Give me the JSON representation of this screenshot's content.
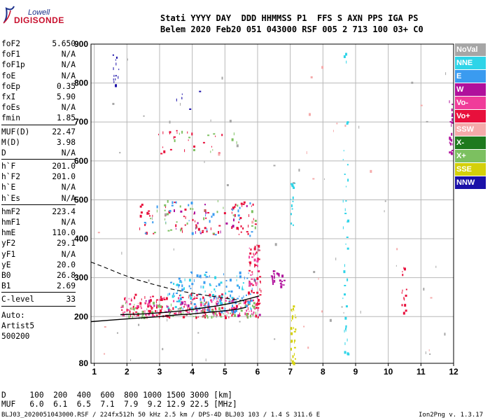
{
  "logo": {
    "line1": "Lowell",
    "line2": "DIGISONDE"
  },
  "header": {
    "row1": "Stati YYYY DAY  DDD HHMMSS P1  FFS S AXN PPS IGA PS",
    "row2": "Belem 2020 Feb20 051 043000 RSF 005 2 713 100 03+ C0"
  },
  "params": [
    {
      "k": "foF2",
      "v": "5.650",
      "sep": false
    },
    {
      "k": "foF1",
      "v": "N/A",
      "sep": false
    },
    {
      "k": "foF1p",
      "v": "N/A",
      "sep": false
    },
    {
      "k": "foE",
      "v": "N/A",
      "sep": false
    },
    {
      "k": "foEp",
      "v": "0.35",
      "sep": false
    },
    {
      "k": "fxI",
      "v": "5.90",
      "sep": false
    },
    {
      "k": "foEs",
      "v": "N/A",
      "sep": false
    },
    {
      "k": "fmin",
      "v": "1.85",
      "sep": true
    },
    {
      "k": "MUF(D)",
      "v": "22.47",
      "sep": false
    },
    {
      "k": "M(D)",
      "v": "3.98",
      "sep": false
    },
    {
      "k": "D",
      "v": "N/A",
      "sep": true
    },
    {
      "k": "h`F",
      "v": "201.0",
      "sep": false
    },
    {
      "k": "h`F2",
      "v": "201.0",
      "sep": false
    },
    {
      "k": "h`E",
      "v": "N/A",
      "sep": false
    },
    {
      "k": "h`Es",
      "v": "N/A",
      "sep": true
    },
    {
      "k": "hmF2",
      "v": "223.4",
      "sep": false
    },
    {
      "k": "hmF1",
      "v": "N/A",
      "sep": false
    },
    {
      "k": "hmE",
      "v": "110.0",
      "sep": false
    },
    {
      "k": "yF2",
      "v": "29.1",
      "sep": false
    },
    {
      "k": "yF1",
      "v": "N/A",
      "sep": false
    },
    {
      "k": "yE",
      "v": "20.0",
      "sep": false
    },
    {
      "k": "B0",
      "v": "26.8",
      "sep": false
    },
    {
      "k": "B1",
      "v": "2.69",
      "sep": true
    },
    {
      "k": "C-level",
      "v": "33",
      "sep": true
    }
  ],
  "auto": [
    "Auto:",
    "Artist5",
    "500200"
  ],
  "legend": [
    {
      "label": "NoVal",
      "color": "#a6a6a6"
    },
    {
      "label": "NNE",
      "color": "#2ed4e8"
    },
    {
      "label": "E",
      "color": "#3a9bf0"
    },
    {
      "label": "W",
      "color": "#b0109c"
    },
    {
      "label": "Vo-",
      "color": "#f03c9a"
    },
    {
      "label": "Vo+",
      "color": "#e8103c"
    },
    {
      "label": "SSW",
      "color": "#f5aaaa"
    },
    {
      "label": "X-",
      "color": "#1e7a1e"
    },
    {
      "label": "X+",
      "color": "#7cc060"
    },
    {
      "label": "SSE",
      "color": "#d4d00a"
    },
    {
      "label": "NNW",
      "color": "#1a10a8"
    }
  ],
  "mufTable": {
    "row1": "D     100  200  400  600  800 1000 1500 3000 [km]",
    "row2": "MUF   6.0  6.1  6.5  7.1  7.9  9.2 12.9 22.5 [MHz]"
  },
  "footer": {
    "left": "BLJ03_2020051043000.RSF / 224fx512h 50 kHz 2.5 km / DPS-4D BLJ03 103 / 1.4 S 311.6 E",
    "right": "Ion2Png v. 1.3.17"
  },
  "chart_data": {
    "type": "scatter",
    "xlim": [
      0.9,
      12
    ],
    "ylim": [
      80,
      900
    ],
    "xticks": [
      1,
      2,
      3,
      4,
      5,
      6,
      7,
      8,
      9,
      10,
      11,
      12
    ],
    "yticks": [
      80,
      200,
      300,
      400,
      500,
      600,
      700,
      800,
      900
    ],
    "grid": true,
    "legend_position": "right",
    "profile_solid": [
      [
        0.9,
        187
      ],
      [
        1.5,
        191
      ],
      [
        2.0,
        194
      ],
      [
        2.5,
        197
      ],
      [
        3.0,
        200
      ],
      [
        3.5,
        204
      ],
      [
        4.0,
        207
      ],
      [
        4.5,
        211
      ],
      [
        5.0,
        215
      ],
      [
        5.4,
        219
      ],
      [
        5.65,
        224
      ]
    ],
    "profile_dashed": [
      [
        0.9,
        340
      ],
      [
        1.3,
        327
      ],
      [
        1.8,
        310
      ],
      [
        2.3,
        295
      ],
      [
        2.8,
        283
      ],
      [
        3.3,
        272
      ],
      [
        3.8,
        263
      ],
      [
        4.3,
        256
      ],
      [
        4.8,
        250
      ],
      [
        5.3,
        244
      ],
      [
        5.6,
        240
      ]
    ],
    "trace_black": [
      [
        1.8,
        205
      ],
      [
        2.5,
        207
      ],
      [
        3.2,
        211
      ],
      [
        3.8,
        216
      ],
      [
        4.3,
        222
      ],
      [
        4.8,
        228
      ],
      [
        5.3,
        236
      ],
      [
        5.7,
        245
      ],
      [
        6.05,
        253
      ]
    ],
    "echo_clusters": [
      {
        "series": "Vo+",
        "x0": 1.8,
        "x1": 6.1,
        "y0": 200,
        "y1": 260,
        "n": 170
      },
      {
        "series": "Vo-",
        "x0": 1.8,
        "x1": 6.1,
        "y0": 205,
        "y1": 255,
        "n": 90
      },
      {
        "series": "X+",
        "x0": 1.7,
        "x1": 6.0,
        "y0": 200,
        "y1": 240,
        "n": 80
      },
      {
        "series": "E",
        "x0": 3.2,
        "x1": 5.9,
        "y0": 215,
        "y1": 320,
        "n": 110
      },
      {
        "series": "NNE",
        "x0": 3.2,
        "x1": 5.8,
        "y0": 220,
        "y1": 310,
        "n": 50
      },
      {
        "series": "W",
        "x0": 2.2,
        "x1": 6.2,
        "y0": 205,
        "y1": 250,
        "n": 25
      },
      {
        "series": "Vo+",
        "x0": 5.7,
        "x1": 6.1,
        "y0": 260,
        "y1": 385,
        "n": 40
      },
      {
        "series": "Vo-",
        "x0": 5.7,
        "x1": 6.0,
        "y0": 280,
        "y1": 380,
        "n": 20
      },
      {
        "series": "W",
        "x0": 6.4,
        "x1": 6.8,
        "y0": 275,
        "y1": 320,
        "n": 25
      },
      {
        "series": "Vo+",
        "x0": 2.3,
        "x1": 6.0,
        "y0": 410,
        "y1": 500,
        "n": 70
      },
      {
        "series": "E",
        "x0": 2.5,
        "x1": 5.9,
        "y0": 410,
        "y1": 500,
        "n": 30
      },
      {
        "series": "X+",
        "x0": 2.6,
        "x1": 6.0,
        "y0": 415,
        "y1": 500,
        "n": 30
      },
      {
        "series": "W",
        "x0": 2.5,
        "x1": 5.9,
        "y0": 415,
        "y1": 495,
        "n": 15
      },
      {
        "series": "Vo+",
        "x0": 2.9,
        "x1": 5.0,
        "y0": 620,
        "y1": 680,
        "n": 22
      },
      {
        "series": "X+",
        "x0": 3.3,
        "x1": 5.6,
        "y0": 625,
        "y1": 680,
        "n": 12
      },
      {
        "series": "NNW",
        "x0": 1.55,
        "x1": 1.75,
        "y0": 795,
        "y1": 880,
        "n": 14
      },
      {
        "series": "NNE",
        "x0": 7.0,
        "x1": 7.1,
        "y0": 430,
        "y1": 560,
        "n": 14
      },
      {
        "series": "SSE",
        "x0": 7.0,
        "x1": 7.15,
        "y0": 80,
        "y1": 230,
        "n": 30
      },
      {
        "series": "NNE",
        "x0": 8.6,
        "x1": 8.75,
        "y0": 80,
        "y1": 880,
        "n": 40
      },
      {
        "series": "W",
        "x0": 11.85,
        "x1": 11.95,
        "y0": 620,
        "y1": 790,
        "n": 22
      },
      {
        "series": "Vo+",
        "x0": 10.4,
        "x1": 10.55,
        "y0": 200,
        "y1": 330,
        "n": 14
      },
      {
        "series": "NoVal",
        "x0": 1.0,
        "x1": 12.0,
        "y0": 90,
        "y1": 890,
        "n": 55
      },
      {
        "series": "SSW",
        "x0": 1.0,
        "x1": 12.0,
        "y0": 90,
        "y1": 890,
        "n": 25
      },
      {
        "series": "NNW",
        "x0": 3.5,
        "x1": 4.5,
        "y0": 700,
        "y1": 800,
        "n": 6
      }
    ]
  }
}
